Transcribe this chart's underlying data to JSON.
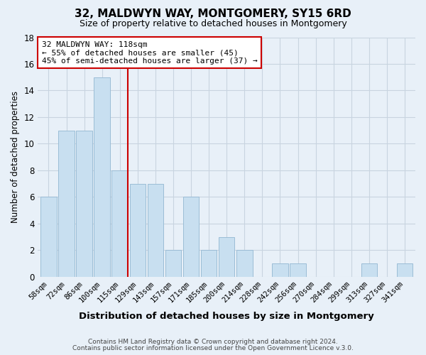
{
  "title": "32, MALDWYN WAY, MONTGOMERY, SY15 6RD",
  "subtitle": "Size of property relative to detached houses in Montgomery",
  "xlabel": "Distribution of detached houses by size in Montgomery",
  "ylabel": "Number of detached properties",
  "bar_labels": [
    "58sqm",
    "72sqm",
    "86sqm",
    "100sqm",
    "115sqm",
    "129sqm",
    "143sqm",
    "157sqm",
    "171sqm",
    "185sqm",
    "200sqm",
    "214sqm",
    "228sqm",
    "242sqm",
    "256sqm",
    "270sqm",
    "284sqm",
    "299sqm",
    "313sqm",
    "327sqm",
    "341sqm"
  ],
  "bar_values": [
    6,
    11,
    11,
    15,
    8,
    7,
    7,
    2,
    6,
    2,
    3,
    2,
    0,
    1,
    1,
    0,
    0,
    0,
    1,
    0,
    1
  ],
  "bar_color": "#c8dff0",
  "bar_edge_color": "#9bbdd6",
  "marker_index": 4,
  "marker_color": "#cc0000",
  "ylim": [
    0,
    18
  ],
  "yticks": [
    0,
    2,
    4,
    6,
    8,
    10,
    12,
    14,
    16,
    18
  ],
  "annotation_title": "32 MALDWYN WAY: 118sqm",
  "annotation_line1": "← 55% of detached houses are smaller (45)",
  "annotation_line2": "45% of semi-detached houses are larger (37) →",
  "footer1": "Contains HM Land Registry data © Crown copyright and database right 2024.",
  "footer2": "Contains public sector information licensed under the Open Government Licence v.3.0.",
  "bg_color": "#e8f0f8",
  "plot_bg_color": "#e8f0f8",
  "grid_color": "#c8d4e0",
  "ann_box_color": "#ffffff",
  "ann_edge_color": "#cc0000"
}
